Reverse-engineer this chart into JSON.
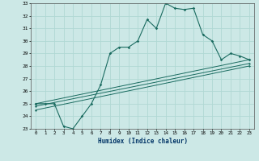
{
  "title": "",
  "xlabel": "Humidex (Indice chaleur)",
  "ylabel": "",
  "xlim": [
    -0.5,
    23.5
  ],
  "ylim": [
    23,
    33
  ],
  "yticks": [
    23,
    24,
    25,
    26,
    27,
    28,
    29,
    30,
    31,
    32,
    33
  ],
  "xticks": [
    0,
    1,
    2,
    3,
    4,
    5,
    6,
    7,
    8,
    9,
    10,
    11,
    12,
    13,
    14,
    15,
    16,
    17,
    18,
    19,
    20,
    21,
    22,
    23
  ],
  "bg_color": "#cce8e6",
  "line_color": "#1a6b60",
  "grid_color": "#b0d8d4",
  "line1_x": [
    0,
    1,
    2,
    3,
    4,
    5,
    6,
    7,
    8,
    9,
    10,
    11,
    12,
    13,
    14,
    15,
    16,
    17,
    18,
    19,
    20,
    21,
    22,
    23
  ],
  "line1_y": [
    25.0,
    25.0,
    25.0,
    23.2,
    23.0,
    24.0,
    25.0,
    26.5,
    29.0,
    29.5,
    29.5,
    30.0,
    31.7,
    31.0,
    33.0,
    32.6,
    32.5,
    32.6,
    30.5,
    30.0,
    28.5,
    29.0,
    28.8,
    28.5
  ],
  "line2_x": [
    0,
    23
  ],
  "line2_y": [
    25.0,
    28.5
  ],
  "line3_x": [
    0,
    23
  ],
  "line3_y": [
    24.8,
    28.2
  ],
  "line4_x": [
    0,
    23
  ],
  "line4_y": [
    24.5,
    28.0
  ]
}
